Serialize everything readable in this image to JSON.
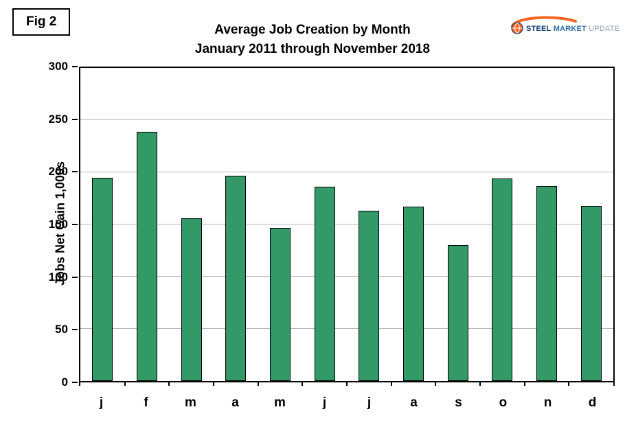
{
  "figure": {
    "label": "Fig 2"
  },
  "logo": {
    "steel": "STEEL",
    "market": "MARKET",
    "update": "UPDATE",
    "arc_color": "#f26522"
  },
  "chart_data": {
    "type": "bar",
    "title": "Average Job Creation by Month",
    "subtitle": "January 2011 through November 2018",
    "categories": [
      "j",
      "f",
      "m",
      "a",
      "m",
      "j",
      "j",
      "a",
      "s",
      "o",
      "n",
      "d"
    ],
    "values": [
      195,
      239,
      156,
      197,
      147,
      186,
      163,
      167,
      130,
      194,
      187,
      168
    ],
    "ylabel": "Jobs Net Gain 1,000s",
    "ylim": [
      0,
      300
    ],
    "ytick_step": 50,
    "bar_color": "#339966",
    "bar_border_color": "#000000",
    "grid": true,
    "grid_color": "#b8b8b8",
    "legend": "none"
  }
}
